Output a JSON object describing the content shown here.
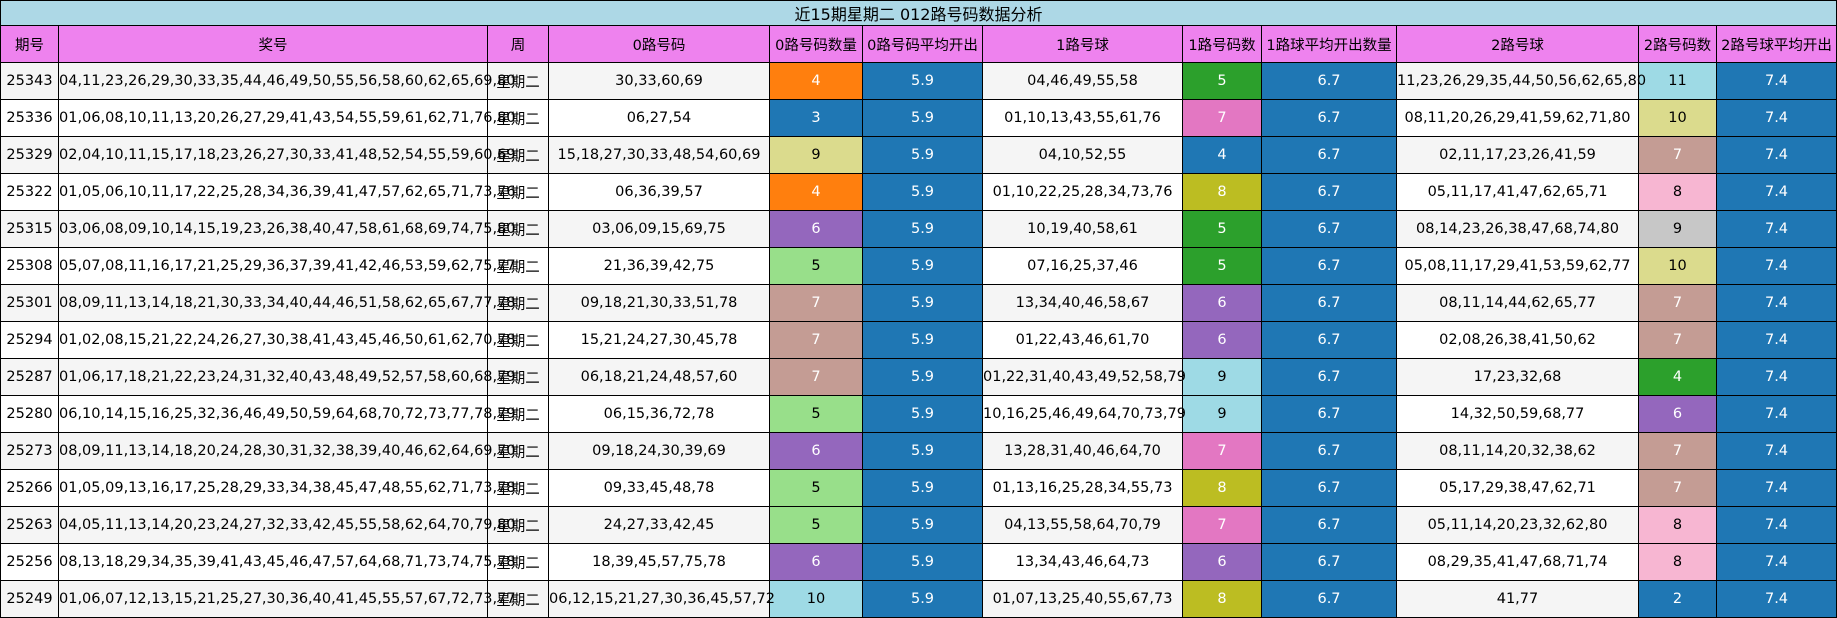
{
  "table": {
    "title": "近15期星期二 012路号码数据分析",
    "headers": [
      "期号",
      "奖号",
      "周",
      "0路号码",
      "0路号码数量",
      "0路号码平均开出",
      "1路号球",
      "1路号码数",
      "1路球平均开出数量",
      "2路号球",
      "2路号码数",
      "2路号球平均开出"
    ],
    "colors": {
      "header_bg": "#ee82ee",
      "title_bg": "#add8e6",
      "avg_bg": "#1f77b4",
      "count_palette": {
        "2": "#1f77b4",
        "3": "#1f77b4",
        "4": "#ff7f0e",
        "5": "#98df8a",
        "6": "#9467bd",
        "7": "#c49c94",
        "8": "#f7b6d2",
        "9": "#dbdb8d",
        "10": "#9edae5",
        "11": "#9edae5"
      }
    },
    "rows": [
      {
        "issue": "25343",
        "numbers": "04,11,23,26,29,30,33,35,44,46,49,50,55,56,58,60,62,65,69,80",
        "week": "星期二",
        "r0": "30,33,60,69",
        "r0_count": "4",
        "r0_count_color": "#ff7f0e",
        "r0_avg": "5.9",
        "r1": "04,46,49,55,58",
        "r1_count": "5",
        "r1_count_color": "#2ca02c",
        "r1_avg": "6.7",
        "r2": "11,23,26,29,35,44,50,56,62,65,80",
        "r2_count": "11",
        "r2_count_color": "#9edae5",
        "r2_avg": "7.4"
      },
      {
        "issue": "25336",
        "numbers": "01,06,08,10,11,13,20,26,27,29,41,43,54,55,59,61,62,71,76,80",
        "week": "星期二",
        "r0": "06,27,54",
        "r0_count": "3",
        "r0_count_color": "#1f77b4",
        "r0_avg": "5.9",
        "r1": "01,10,13,43,55,61,76",
        "r1_count": "7",
        "r1_count_color": "#e377c2",
        "r1_avg": "6.7",
        "r2": "08,11,20,26,29,41,59,62,71,80",
        "r2_count": "10",
        "r2_count_color": "#dbdb8d",
        "r2_avg": "7.4"
      },
      {
        "issue": "25329",
        "numbers": "02,04,10,11,15,17,18,23,26,27,30,33,41,48,52,54,55,59,60,69",
        "week": "星期二",
        "r0": "15,18,27,30,33,48,54,60,69",
        "r0_count": "9",
        "r0_count_color": "#dbdb8d",
        "r0_avg": "5.9",
        "r1": "04,10,52,55",
        "r1_count": "4",
        "r1_count_color": "#1f77b4",
        "r1_avg": "6.7",
        "r2": "02,11,17,23,26,41,59",
        "r2_count": "7",
        "r2_count_color": "#c49c94",
        "r2_avg": "7.4"
      },
      {
        "issue": "25322",
        "numbers": "01,05,06,10,11,17,22,25,28,34,36,39,41,47,57,62,65,71,73,76",
        "week": "星期二",
        "r0": "06,36,39,57",
        "r0_count": "4",
        "r0_count_color": "#ff7f0e",
        "r0_avg": "5.9",
        "r1": "01,10,22,25,28,34,73,76",
        "r1_count": "8",
        "r1_count_color": "#bcbd22",
        "r1_avg": "6.7",
        "r2": "05,11,17,41,47,62,65,71",
        "r2_count": "8",
        "r2_count_color": "#f7b6d2",
        "r2_avg": "7.4"
      },
      {
        "issue": "25315",
        "numbers": "03,06,08,09,10,14,15,19,23,26,38,40,47,58,61,68,69,74,75,80",
        "week": "星期二",
        "r0": "03,06,09,15,69,75",
        "r0_count": "6",
        "r0_count_color": "#9467bd",
        "r0_avg": "5.9",
        "r1": "10,19,40,58,61",
        "r1_count": "5",
        "r1_count_color": "#2ca02c",
        "r1_avg": "6.7",
        "r2": "08,14,23,26,38,47,68,74,80",
        "r2_count": "9",
        "r2_count_color": "#c7c7c7",
        "r2_avg": "7.4"
      },
      {
        "issue": "25308",
        "numbers": "05,07,08,11,16,17,21,25,29,36,37,39,41,42,46,53,59,62,75,77",
        "week": "星期二",
        "r0": "21,36,39,42,75",
        "r0_count": "5",
        "r0_count_color": "#98df8a",
        "r0_avg": "5.9",
        "r1": "07,16,25,37,46",
        "r1_count": "5",
        "r1_count_color": "#2ca02c",
        "r1_avg": "6.7",
        "r2": "05,08,11,17,29,41,53,59,62,77",
        "r2_count": "10",
        "r2_count_color": "#dbdb8d",
        "r2_avg": "7.4"
      },
      {
        "issue": "25301",
        "numbers": "08,09,11,13,14,18,21,30,33,34,40,44,46,51,58,62,65,67,77,78",
        "week": "星期二",
        "r0": "09,18,21,30,33,51,78",
        "r0_count": "7",
        "r0_count_color": "#c49c94",
        "r0_avg": "5.9",
        "r1": "13,34,40,46,58,67",
        "r1_count": "6",
        "r1_count_color": "#9467bd",
        "r1_avg": "6.7",
        "r2": "08,11,14,44,62,65,77",
        "r2_count": "7",
        "r2_count_color": "#c49c94",
        "r2_avg": "7.4"
      },
      {
        "issue": "25294",
        "numbers": "01,02,08,15,21,22,24,26,27,30,38,41,43,45,46,50,61,62,70,78",
        "week": "星期二",
        "r0": "15,21,24,27,30,45,78",
        "r0_count": "7",
        "r0_count_color": "#c49c94",
        "r0_avg": "5.9",
        "r1": "01,22,43,46,61,70",
        "r1_count": "6",
        "r1_count_color": "#9467bd",
        "r1_avg": "6.7",
        "r2": "02,08,26,38,41,50,62",
        "r2_count": "7",
        "r2_count_color": "#c49c94",
        "r2_avg": "7.4"
      },
      {
        "issue": "25287",
        "numbers": "01,06,17,18,21,22,23,24,31,32,40,43,48,49,52,57,58,60,68,79",
        "week": "星期二",
        "r0": "06,18,21,24,48,57,60",
        "r0_count": "7",
        "r0_count_color": "#c49c94",
        "r0_avg": "5.9",
        "r1": "01,22,31,40,43,49,52,58,79",
        "r1_count": "9",
        "r1_count_color": "#9edae5",
        "r1_avg": "6.7",
        "r2": "17,23,32,68",
        "r2_count": "4",
        "r2_count_color": "#2ca02c",
        "r2_avg": "7.4"
      },
      {
        "issue": "25280",
        "numbers": "06,10,14,15,16,25,32,36,46,49,50,59,64,68,70,72,73,77,78,79",
        "week": "星期二",
        "r0": "06,15,36,72,78",
        "r0_count": "5",
        "r0_count_color": "#98df8a",
        "r0_avg": "5.9",
        "r1": "10,16,25,46,49,64,70,73,79",
        "r1_count": "9",
        "r1_count_color": "#9edae5",
        "r1_avg": "6.7",
        "r2": "14,32,50,59,68,77",
        "r2_count": "6",
        "r2_count_color": "#9467bd",
        "r2_avg": "7.4"
      },
      {
        "issue": "25273",
        "numbers": "08,09,11,13,14,18,20,24,28,30,31,32,38,39,40,46,62,64,69,70",
        "week": "星期二",
        "r0": "09,18,24,30,39,69",
        "r0_count": "6",
        "r0_count_color": "#9467bd",
        "r0_avg": "5.9",
        "r1": "13,28,31,40,46,64,70",
        "r1_count": "7",
        "r1_count_color": "#e377c2",
        "r1_avg": "6.7",
        "r2": "08,11,14,20,32,38,62",
        "r2_count": "7",
        "r2_count_color": "#c49c94",
        "r2_avg": "7.4"
      },
      {
        "issue": "25266",
        "numbers": "01,05,09,13,16,17,25,28,29,33,34,38,45,47,48,55,62,71,73,78",
        "week": "星期二",
        "r0": "09,33,45,48,78",
        "r0_count": "5",
        "r0_count_color": "#98df8a",
        "r0_avg": "5.9",
        "r1": "01,13,16,25,28,34,55,73",
        "r1_count": "8",
        "r1_count_color": "#bcbd22",
        "r1_avg": "6.7",
        "r2": "05,17,29,38,47,62,71",
        "r2_count": "7",
        "r2_count_color": "#c49c94",
        "r2_avg": "7.4"
      },
      {
        "issue": "25263",
        "numbers": "04,05,11,13,14,20,23,24,27,32,33,42,45,55,58,62,64,70,79,80",
        "week": "星期二",
        "r0": "24,27,33,42,45",
        "r0_count": "5",
        "r0_count_color": "#98df8a",
        "r0_avg": "5.9",
        "r1": "04,13,55,58,64,70,79",
        "r1_count": "7",
        "r1_count_color": "#e377c2",
        "r1_avg": "6.7",
        "r2": "05,11,14,20,23,32,62,80",
        "r2_count": "8",
        "r2_count_color": "#f7b6d2",
        "r2_avg": "7.4"
      },
      {
        "issue": "25256",
        "numbers": "08,13,18,29,34,35,39,41,43,45,46,47,57,64,68,71,73,74,75,78",
        "week": "星期二",
        "r0": "18,39,45,57,75,78",
        "r0_count": "6",
        "r0_count_color": "#9467bd",
        "r0_avg": "5.9",
        "r1": "13,34,43,46,64,73",
        "r1_count": "6",
        "r1_count_color": "#9467bd",
        "r1_avg": "6.7",
        "r2": "08,29,35,41,47,68,71,74",
        "r2_count": "8",
        "r2_count_color": "#f7b6d2",
        "r2_avg": "7.4"
      },
      {
        "issue": "25249",
        "numbers": "01,06,07,12,13,15,21,25,27,30,36,40,41,45,55,57,67,72,73,77",
        "week": "星期二",
        "r0": "06,12,15,21,27,30,36,45,57,72",
        "r0_count": "10",
        "r0_count_color": "#9edae5",
        "r0_avg": "5.9",
        "r1": "01,07,13,25,40,55,67,73",
        "r1_count": "8",
        "r1_count_color": "#bcbd22",
        "r1_avg": "6.7",
        "r2": "41,77",
        "r2_count": "2",
        "r2_count_color": "#1f77b4",
        "r2_avg": "7.4"
      }
    ]
  }
}
